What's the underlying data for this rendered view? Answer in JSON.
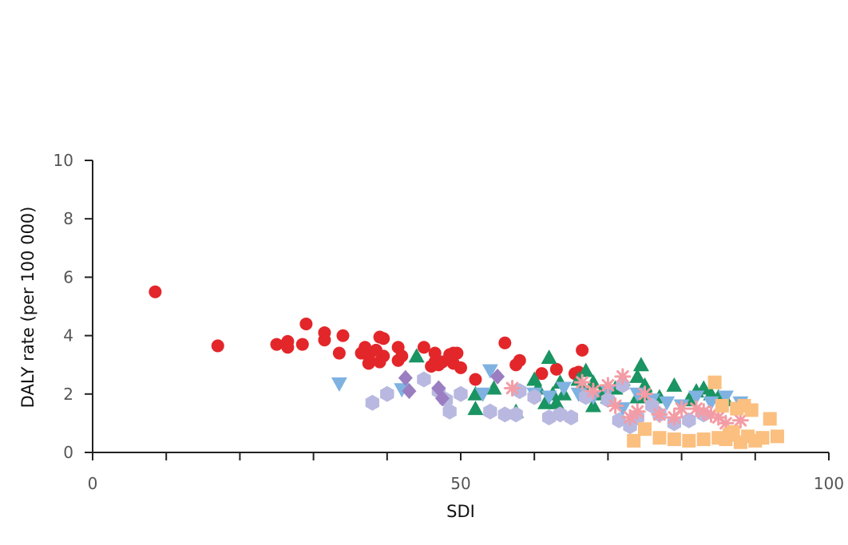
{
  "chart_data": {
    "type": "scatter",
    "title": "",
    "xlabel": "SDI",
    "ylabel": "DALY rate (per 100 000)",
    "xlim": [
      0,
      100
    ],
    "ylim": [
      0,
      10
    ],
    "x_ticks": [
      0,
      50,
      100
    ],
    "y_ticks": [
      0,
      2,
      4,
      6,
      8,
      10
    ],
    "grid": false,
    "legend": "none",
    "series": [
      {
        "marker": "circle",
        "color": "#e3262a",
        "points": [
          [
            8.5,
            5.5
          ],
          [
            17,
            3.65
          ],
          [
            25,
            3.7
          ],
          [
            26.5,
            3.8
          ],
          [
            26.5,
            3.6
          ],
          [
            28.5,
            3.7
          ],
          [
            29,
            4.4
          ],
          [
            31.5,
            4.1
          ],
          [
            31.5,
            3.85
          ],
          [
            33.5,
            3.4
          ],
          [
            34,
            4.0
          ],
          [
            36.5,
            3.4
          ],
          [
            37,
            3.6
          ],
          [
            37.5,
            3.05
          ],
          [
            37.5,
            3.3
          ],
          [
            38.5,
            3.5
          ],
          [
            39,
            3.1
          ],
          [
            39,
            3.95
          ],
          [
            39.5,
            3.3
          ],
          [
            39.5,
            3.9
          ],
          [
            41.5,
            3.15
          ],
          [
            41.5,
            3.6
          ],
          [
            42,
            3.3
          ],
          [
            45,
            3.6
          ],
          [
            46,
            2.95
          ],
          [
            46.5,
            3.4
          ],
          [
            46.5,
            3.1
          ],
          [
            47,
            3.0
          ],
          [
            47.5,
            3.1
          ],
          [
            48.5,
            3.35
          ],
          [
            49,
            3.4
          ],
          [
            49,
            3.05
          ],
          [
            49.5,
            3.4
          ],
          [
            50,
            2.9
          ],
          [
            52,
            2.5
          ],
          [
            56,
            3.75
          ],
          [
            57.5,
            3.0
          ],
          [
            58,
            3.15
          ],
          [
            61,
            2.7
          ],
          [
            63,
            2.85
          ],
          [
            65.5,
            2.7
          ],
          [
            66,
            2.75
          ],
          [
            66.5,
            3.5
          ]
        ]
      },
      {
        "marker": "triangle-up",
        "color": "#1a9462",
        "points": [
          [
            44,
            3.3
          ],
          [
            52,
            2.0
          ],
          [
            52,
            1.5
          ],
          [
            54.5,
            2.2
          ],
          [
            57.5,
            1.4
          ],
          [
            60,
            2.5
          ],
          [
            60.5,
            2.2
          ],
          [
            61.5,
            1.7
          ],
          [
            62,
            3.25
          ],
          [
            62.5,
            2.0
          ],
          [
            63,
            1.7
          ],
          [
            63.5,
            2.4
          ],
          [
            64,
            2.0
          ],
          [
            66,
            2.5
          ],
          [
            66.5,
            2.3
          ],
          [
            67,
            2.8
          ],
          [
            68,
            2.4
          ],
          [
            68,
            1.6
          ],
          [
            69,
            2.0
          ],
          [
            70,
            1.9
          ],
          [
            71,
            2.2
          ],
          [
            72,
            2.5
          ],
          [
            74,
            1.9
          ],
          [
            74,
            2.6
          ],
          [
            74.5,
            3.0
          ],
          [
            75,
            2.3
          ],
          [
            75.5,
            2.0
          ],
          [
            77,
            1.9
          ],
          [
            79,
            2.3
          ],
          [
            81,
            1.8
          ],
          [
            82,
            2.1
          ],
          [
            83,
            2.2
          ],
          [
            84,
            2.0
          ],
          [
            85,
            1.9
          ],
          [
            86,
            1.8
          ]
        ]
      },
      {
        "marker": "triangle-down",
        "color": "#7fb2e1",
        "points": [
          [
            33.5,
            2.35
          ],
          [
            42,
            2.15
          ],
          [
            53,
            2.0
          ],
          [
            54,
            2.8
          ],
          [
            60,
            2.0
          ],
          [
            62,
            1.9
          ],
          [
            64,
            2.2
          ],
          [
            66,
            2.0
          ],
          [
            68,
            1.9
          ],
          [
            70,
            2.1
          ],
          [
            72,
            1.5
          ],
          [
            74,
            2.0
          ],
          [
            76,
            1.8
          ],
          [
            78,
            1.7
          ],
          [
            80,
            1.6
          ],
          [
            82,
            1.9
          ],
          [
            84,
            1.7
          ],
          [
            86,
            1.9
          ],
          [
            88,
            1.7
          ]
        ]
      },
      {
        "marker": "hexagon",
        "color": "#b8b8e0",
        "points": [
          [
            38,
            1.7
          ],
          [
            40,
            2.0
          ],
          [
            45,
            2.5
          ],
          [
            47,
            2.1
          ],
          [
            48,
            1.8
          ],
          [
            48.5,
            1.4
          ],
          [
            50,
            2.0
          ],
          [
            54,
            1.4
          ],
          [
            56,
            1.3
          ],
          [
            57.5,
            1.3
          ],
          [
            58,
            2.1
          ],
          [
            60,
            1.9
          ],
          [
            62,
            1.2
          ],
          [
            63.5,
            1.3
          ],
          [
            65,
            1.2
          ],
          [
            67,
            1.9
          ],
          [
            70,
            1.8
          ],
          [
            71.5,
            1.1
          ],
          [
            72,
            2.3
          ],
          [
            73,
            0.9
          ],
          [
            74,
            1.2
          ],
          [
            76,
            1.6
          ],
          [
            77,
            1.3
          ],
          [
            79,
            1.0
          ],
          [
            81,
            1.1
          ],
          [
            83,
            1.3
          ]
        ]
      },
      {
        "marker": "diamond",
        "color": "#9b7ec1",
        "points": [
          [
            42.5,
            2.55
          ],
          [
            43,
            2.1
          ],
          [
            47,
            2.2
          ],
          [
            47.5,
            1.85
          ],
          [
            55,
            2.6
          ]
        ]
      },
      {
        "marker": "asterisk",
        "color": "#f49ca5",
        "points": [
          [
            57,
            2.2
          ],
          [
            66.5,
            2.4
          ],
          [
            68,
            2.1
          ],
          [
            70,
            2.3
          ],
          [
            71,
            1.6
          ],
          [
            72,
            2.6
          ],
          [
            73,
            1.2
          ],
          [
            74,
            1.4
          ],
          [
            75,
            2.0
          ],
          [
            77,
            1.3
          ],
          [
            79,
            1.2
          ],
          [
            80,
            1.5
          ],
          [
            82,
            1.5
          ],
          [
            83,
            1.4
          ],
          [
            84,
            1.3
          ],
          [
            85,
            1.2
          ],
          [
            86,
            1.0
          ],
          [
            88,
            1.1
          ]
        ]
      },
      {
        "marker": "square",
        "color": "#fbbf7f",
        "points": [
          [
            73.5,
            0.4
          ],
          [
            75,
            0.8
          ],
          [
            77,
            0.5
          ],
          [
            79,
            0.45
          ],
          [
            81,
            0.4
          ],
          [
            83,
            0.45
          ],
          [
            84.5,
            2.4
          ],
          [
            85,
            0.5
          ],
          [
            85.5,
            1.6
          ],
          [
            86,
            0.45
          ],
          [
            86.5,
            0.6
          ],
          [
            87,
            0.7
          ],
          [
            87.5,
            1.5
          ],
          [
            88,
            0.35
          ],
          [
            88.5,
            1.6
          ],
          [
            89,
            0.55
          ],
          [
            89.5,
            1.45
          ],
          [
            90,
            0.4
          ],
          [
            91,
            0.5
          ],
          [
            92,
            1.15
          ],
          [
            93,
            0.55
          ]
        ]
      }
    ]
  }
}
